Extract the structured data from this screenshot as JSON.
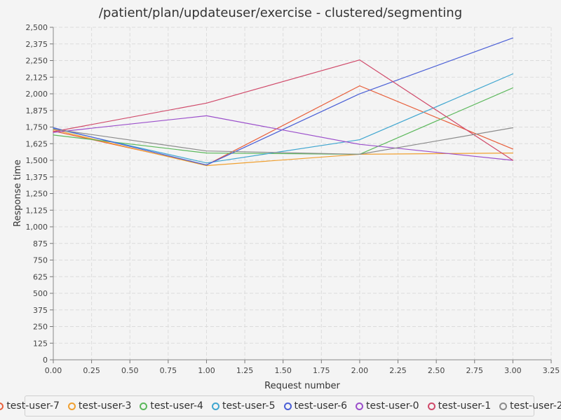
{
  "chart_data": {
    "type": "line",
    "title": "/patient/plan/updateuser/exercise - clustered/segmenting",
    "xlabel": "Request number",
    "ylabel": "Response time",
    "xlim": [
      0,
      3.25
    ],
    "ylim": [
      0,
      2500
    ],
    "xticks": [
      "0.00",
      "0.25",
      "0.50",
      "0.75",
      "1.00",
      "1.25",
      "1.50",
      "1.75",
      "2.00",
      "2.25",
      "2.50",
      "2.75",
      "3.00",
      "3.25"
    ],
    "yticks": [
      "0",
      "125",
      "250",
      "375",
      "500",
      "625",
      "750",
      "875",
      "1,000",
      "1,125",
      "1,250",
      "1,375",
      "1,500",
      "1,625",
      "1,750",
      "1,875",
      "2,000",
      "2,125",
      "2,250",
      "2,375",
      "2,500"
    ],
    "grid": true,
    "legend_position": "bottom",
    "x": [
      0,
      1,
      2,
      3
    ],
    "series": [
      {
        "name": "test-user-7",
        "color": "#e8603c",
        "values": [
          1720,
          1465,
          2060,
          1585
        ]
      },
      {
        "name": "test-user-3",
        "color": "#f0a030",
        "values": [
          1730,
          1460,
          1545,
          1555
        ]
      },
      {
        "name": "test-user-4",
        "color": "#5cb85c",
        "values": [
          1690,
          1555,
          1545,
          2045
        ]
      },
      {
        "name": "test-user-5",
        "color": "#3fa6d0",
        "values": [
          1740,
          1480,
          1655,
          2150
        ]
      },
      {
        "name": "test-user-6",
        "color": "#4a5fd6",
        "values": [
          1745,
          1465,
          2000,
          2420
        ]
      },
      {
        "name": "test-user-0",
        "color": "#9b4fcb",
        "values": [
          1710,
          1835,
          1620,
          1500
        ]
      },
      {
        "name": "test-user-1",
        "color": "#d04a6a",
        "values": [
          1715,
          1930,
          2255,
          1500
        ]
      },
      {
        "name": "test-user-2",
        "color": "#8c8c8c",
        "values": [
          1735,
          1570,
          1545,
          1745
        ]
      }
    ]
  }
}
